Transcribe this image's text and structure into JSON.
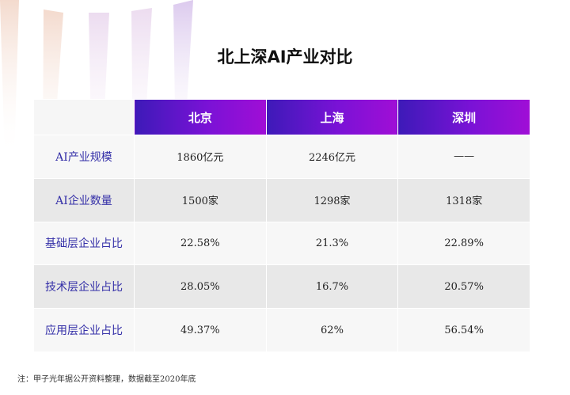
{
  "title": "北上深AI产业对比",
  "columns": [
    "北京",
    "上海",
    "深圳"
  ],
  "rows": [
    {
      "label": "AI产业规模",
      "values": [
        "1860亿元",
        "2246亿元",
        "——"
      ]
    },
    {
      "label": "AI企业数量",
      "values": [
        "1500家",
        "1298家",
        "1318家"
      ]
    },
    {
      "label": "基础层企业占比",
      "values": [
        "22.58%",
        "21.3%",
        "22.89%"
      ]
    },
    {
      "label": "技术层企业占比",
      "values": [
        "28.05%",
        "16.7%",
        "20.57%"
      ]
    },
    {
      "label": "应用层企业占比",
      "values": [
        "49.37%",
        "62%",
        "56.54%"
      ]
    }
  ],
  "note": "注：甲子光年据公开资料整理，数据截至2020年底",
  "colors": {
    "header_start": "#3d1ab8",
    "header_end": "#a00ed6",
    "row_label": "#3530a8"
  }
}
